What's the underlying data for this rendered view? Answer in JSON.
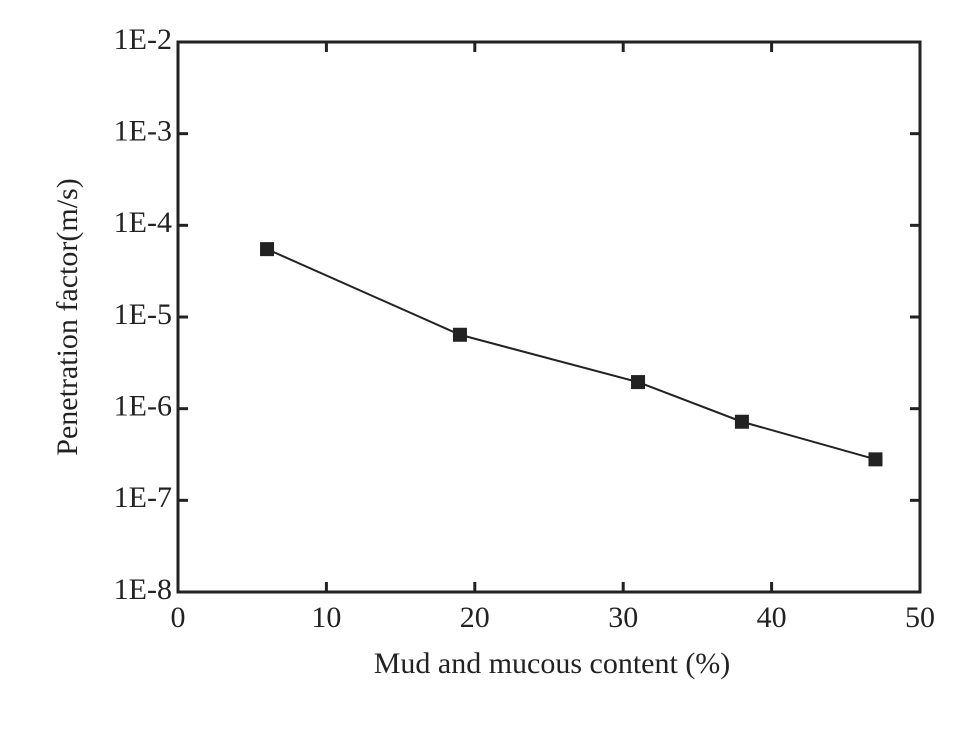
{
  "chart_data": {
    "type": "line",
    "x_label": "Mud and mucous content (%)",
    "y_label": "Penetration factor(m/s)",
    "x": [
      6,
      19,
      31,
      38,
      47
    ],
    "series": [
      {
        "color": "#222222",
        "values": [
          5.5e-05,
          6.4e-06,
          1.95e-06,
          7.2e-07,
          2.8e-07
        ]
      }
    ],
    "xlim": [
      0,
      50
    ],
    "xticks": [
      0,
      10,
      20,
      30,
      40,
      50
    ],
    "yscale": "log",
    "ylim": [
      1e-08,
      0.01
    ],
    "yticks": [
      {
        "value": 1e-08,
        "label": "1E-8"
      },
      {
        "value": 1e-07,
        "label": "1E-7"
      },
      {
        "value": 1e-06,
        "label": "1E-6"
      },
      {
        "value": 1e-05,
        "label": "1E-5"
      },
      {
        "value": 0.0001,
        "label": "1E-4"
      },
      {
        "value": 0.001,
        "label": "1E-3"
      },
      {
        "value": 0.01,
        "label": "1E-2"
      }
    ],
    "grid": false
  }
}
